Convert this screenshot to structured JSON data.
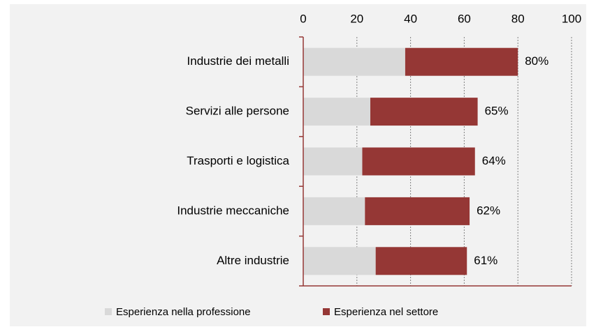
{
  "chart_data": {
    "type": "stacked_barh",
    "categories": [
      "Industrie dei metalli",
      "Servizi alle persone",
      "Trasporti e logistica",
      "Industrie meccaniche",
      "Altre industrie"
    ],
    "series": [
      {
        "name": "Esperienza nella professione",
        "color": "#d9d9d9",
        "values": [
          38,
          25,
          22,
          23,
          27
        ]
      },
      {
        "name": "Esperienza nel settore",
        "color": "#953735",
        "values": [
          42,
          40,
          42,
          39,
          34
        ]
      }
    ],
    "totals": [
      80,
      65,
      64,
      62,
      61
    ],
    "total_labels": [
      "80%",
      "65%",
      "64%",
      "62%",
      "61%"
    ],
    "xlim": [
      0,
      100
    ],
    "xticks": [
      0,
      20,
      40,
      60,
      80,
      100
    ],
    "grid": true
  }
}
